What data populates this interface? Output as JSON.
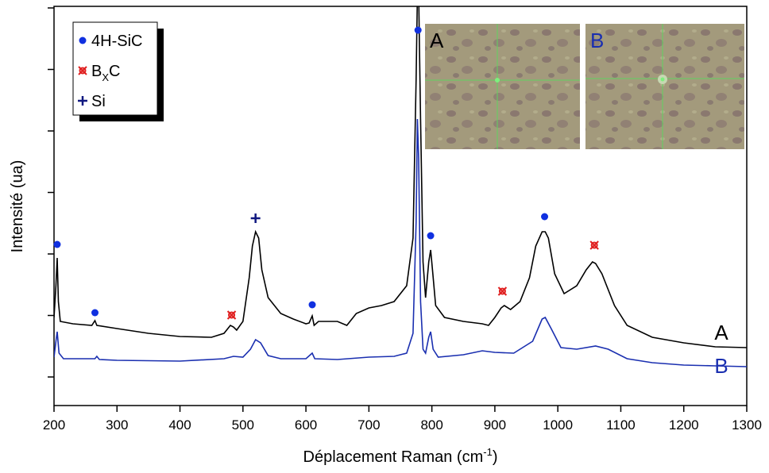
{
  "chart_data": {
    "type": "line",
    "xlabel": [
      "Déplacement Raman (cm",
      "-1",
      ")"
    ],
    "ylabel": "Intensité (ua)",
    "xlim": [
      200,
      1300
    ],
    "xticks": [
      200,
      300,
      400,
      500,
      600,
      700,
      800,
      900,
      1000,
      1100,
      1200,
      1300
    ],
    "ylim": [
      -36,
      467
    ],
    "yticks": [
      0,
      77.5,
      155,
      232.5,
      310,
      387.5,
      465
    ],
    "series": [
      {
        "name": "A",
        "color": "#000000",
        "x": [
          200,
          203,
          205,
          207,
          210,
          230,
          260,
          265,
          268,
          300,
          350,
          400,
          450,
          470,
          480,
          485,
          490,
          500,
          510,
          515,
          520,
          525,
          530,
          540,
          560,
          580,
          600,
          605,
          610,
          613,
          620,
          650,
          665,
          680,
          700,
          720,
          740,
          760,
          770,
          775,
          778,
          782,
          786,
          790,
          795,
          798,
          801,
          806,
          820,
          850,
          880,
          890,
          900,
          910,
          915,
          925,
          940,
          955,
          965,
          975,
          980,
          985,
          995,
          1010,
          1030,
          1045,
          1055,
          1060,
          1070,
          1090,
          1110,
          1150,
          1200,
          1250,
          1300
        ],
        "values": [
          75,
          115,
          150,
          95,
          70,
          67,
          65,
          71,
          65,
          61,
          55,
          51,
          50,
          55,
          65,
          63,
          59,
          70,
          125,
          165,
          183,
          175,
          135,
          100,
          80,
          73,
          67,
          68,
          77,
          65,
          70,
          70,
          65,
          80,
          87,
          90,
          95,
          115,
          175,
          375,
          535,
          325,
          145,
          100,
          145,
          160,
          135,
          90,
          75,
          70,
          67,
          65,
          75,
          87,
          90,
          85,
          95,
          125,
          165,
          183,
          183,
          175,
          130,
          105,
          115,
          135,
          145,
          143,
          130,
          90,
          65,
          50,
          43,
          38,
          37
        ]
      },
      {
        "name": "B",
        "color": "#1a2fb0",
        "x": [
          200,
          203,
          205,
          208,
          215,
          265,
          268,
          272,
          300,
          400,
          470,
          485,
          500,
          512,
          520,
          528,
          540,
          560,
          600,
          610,
          614,
          650,
          700,
          740,
          760,
          770,
          775,
          777,
          779,
          782,
          786,
          790,
          795,
          798,
          802,
          810,
          850,
          880,
          900,
          930,
          960,
          975,
          980,
          990,
          1005,
          1030,
          1060,
          1080,
          1110,
          1150,
          1200,
          1250,
          1300
        ],
        "values": [
          25,
          45,
          57,
          30,
          23,
          23,
          26,
          22,
          21,
          20,
          23,
          26,
          25,
          35,
          47,
          43,
          27,
          23,
          23,
          30,
          23,
          22,
          25,
          26,
          30,
          55,
          195,
          325,
          275,
          95,
          35,
          30,
          50,
          57,
          35,
          25,
          28,
          33,
          31,
          30,
          45,
          73,
          75,
          60,
          37,
          35,
          39,
          35,
          23,
          18,
          15,
          14,
          13
        ]
      }
    ],
    "markers": [
      {
        "name": [
          "4H-SiC"
        ],
        "symbol": "dot",
        "color": "#1030e0",
        "x": [
          205,
          265,
          610,
          778,
          798,
          979
        ],
        "values": [
          167,
          81,
          91,
          437,
          178,
          202
        ]
      },
      {
        "name": [
          "B",
          "X",
          "C"
        ],
        "symbol": "quad",
        "color": "#e02020",
        "x": [
          482,
          912,
          1058
        ],
        "values": [
          78,
          108,
          166
        ]
      },
      {
        "name": [
          "Si"
        ],
        "symbol": "plus",
        "color": "#101880",
        "x": [
          520
        ],
        "values": [
          200
        ]
      }
    ],
    "insets": [
      {
        "label": "A",
        "color": "#000000"
      },
      {
        "label": "B",
        "color": "#1a2fb0"
      }
    ]
  }
}
